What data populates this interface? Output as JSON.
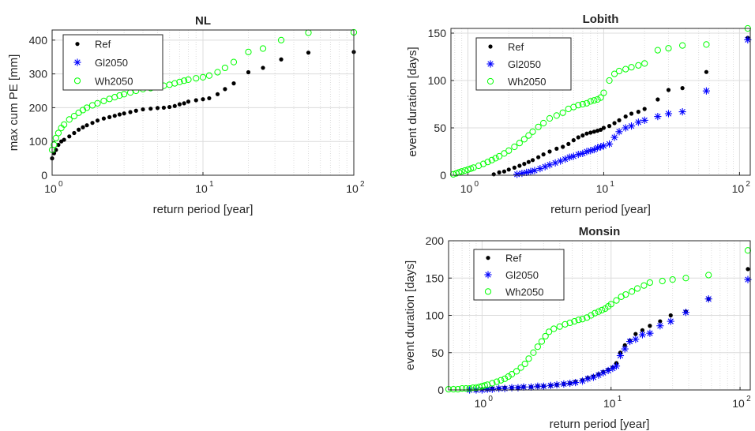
{
  "colors": {
    "Ref": "#000000",
    "Gl2050": "#0000ff",
    "Wh2050": "#00ff00",
    "grid": "#dcdcdc",
    "axis": "#262626"
  },
  "chart_data": [
    {
      "type": "scatter",
      "title": "NL",
      "xlabel": "return period [year]",
      "ylabel": "max cum PE [mm]",
      "xscale": "log",
      "xlim": [
        1,
        100
      ],
      "ylim": [
        0,
        430
      ],
      "xticks": [
        {
          "base": "10",
          "exp": "0"
        },
        {
          "base": "10",
          "exp": "1"
        },
        {
          "base": "10",
          "exp": "2"
        }
      ],
      "yticks": [
        "0",
        "100",
        "200",
        "300",
        "400"
      ],
      "legend": {
        "placement": "top-left",
        "entries": [
          "Ref",
          "Wh2050"
        ]
      },
      "grid": true,
      "series": [
        {
          "name": "Ref",
          "marker": "dot",
          "x": [
            1.0,
            1.03,
            1.06,
            1.1,
            1.15,
            1.2,
            1.3,
            1.4,
            1.5,
            1.6,
            1.7,
            1.85,
            2.0,
            2.2,
            2.4,
            2.6,
            2.8,
            3.0,
            3.3,
            3.6,
            4.0,
            4.5,
            5.0,
            5.5,
            6.0,
            6.5,
            7.0,
            7.5,
            8.0,
            9.0,
            10.0,
            11.0,
            12.5,
            14.0,
            16.0,
            20.0,
            25.0,
            33.0,
            50.0,
            100.0
          ],
          "y": [
            50,
            65,
            75,
            90,
            100,
            105,
            115,
            125,
            135,
            142,
            148,
            155,
            162,
            168,
            172,
            176,
            180,
            183,
            187,
            191,
            195,
            197,
            199,
            200,
            202,
            205,
            210,
            213,
            218,
            222,
            225,
            228,
            240,
            255,
            272,
            305,
            318,
            343,
            363,
            365
          ]
        },
        {
          "name": "Wh2050",
          "marker": "circle",
          "x": [
            1.0,
            1.03,
            1.06,
            1.1,
            1.15,
            1.2,
            1.3,
            1.4,
            1.5,
            1.6,
            1.7,
            1.85,
            2.0,
            2.2,
            2.4,
            2.6,
            2.8,
            3.0,
            3.3,
            3.6,
            4.0,
            4.5,
            5.0,
            5.5,
            6.0,
            6.5,
            7.0,
            7.5,
            8.0,
            9.0,
            10.0,
            11.0,
            12.5,
            14.0,
            16.0,
            20.0,
            25.0,
            33.0,
            50.0,
            100.0
          ],
          "y": [
            75,
            90,
            110,
            125,
            140,
            150,
            165,
            175,
            185,
            193,
            200,
            207,
            213,
            220,
            226,
            231,
            236,
            240,
            245,
            250,
            255,
            258,
            262,
            265,
            268,
            272,
            276,
            280,
            283,
            287,
            290,
            295,
            305,
            318,
            335,
            365,
            375,
            400,
            422,
            423
          ]
        }
      ]
    },
    {
      "type": "scatter",
      "title": "Lobith",
      "xlabel": "return period [year]",
      "ylabel": "event duration [days]",
      "xscale": "log",
      "xlim": [
        0.75,
        120
      ],
      "ylim": [
        0,
        155
      ],
      "xticks": [
        {
          "base": "10",
          "exp": "0"
        },
        {
          "base": "10",
          "exp": "1"
        },
        {
          "base": "10",
          "exp": "2"
        }
      ],
      "yticks": [
        "0",
        "50",
        "100",
        "150"
      ],
      "legend": {
        "placement": "top-left",
        "entries": [
          "Ref",
          "Gl2050",
          "Wh2050"
        ]
      },
      "grid": true,
      "series": [
        {
          "name": "Ref",
          "marker": "dot",
          "x": [
            1.55,
            1.7,
            1.85,
            2.0,
            2.2,
            2.4,
            2.6,
            2.8,
            3.0,
            3.3,
            3.6,
            4.0,
            4.5,
            5.0,
            5.5,
            6.0,
            6.5,
            7.0,
            7.5,
            8.0,
            8.5,
            9.0,
            9.5,
            10.0,
            11.0,
            12.0,
            13.0,
            14.5,
            16.0,
            18.0,
            20.0,
            25.0,
            30.0,
            38.0,
            57.0,
            115.0
          ],
          "y": [
            1,
            3,
            4,
            6,
            8,
            10,
            12,
            14,
            16,
            19,
            22,
            25,
            28,
            30,
            33,
            37,
            40,
            42,
            44,
            45,
            46,
            47,
            48,
            50,
            52,
            55,
            58,
            62,
            65,
            67,
            70,
            80,
            90,
            92,
            109,
            145
          ]
        },
        {
          "name": "Gl2050",
          "marker": "star",
          "x": [
            2.3,
            2.5,
            2.7,
            2.9,
            3.1,
            3.4,
            3.7,
            4.0,
            4.4,
            4.8,
            5.2,
            5.6,
            6.0,
            6.5,
            7.0,
            7.5,
            8.0,
            8.5,
            9.0,
            9.5,
            10.0,
            11.0,
            12.0,
            13.0,
            14.5,
            16.0,
            18.0,
            20.0,
            25.0,
            30.0,
            38.0,
            57.0,
            115.0
          ],
          "y": [
            1,
            2,
            3,
            4,
            5,
            7,
            9,
            11,
            13,
            15,
            17,
            19,
            20,
            22,
            23,
            25,
            26,
            27,
            29,
            30,
            31,
            33,
            40,
            46,
            50,
            52,
            56,
            58,
            62,
            65,
            67,
            89,
            143
          ]
        },
        {
          "name": "Wh2050",
          "marker": "circle",
          "x": [
            0.78,
            0.82,
            0.86,
            0.9,
            0.95,
            1.0,
            1.05,
            1.1,
            1.2,
            1.3,
            1.4,
            1.5,
            1.6,
            1.7,
            1.85,
            2.0,
            2.2,
            2.4,
            2.6,
            2.8,
            3.0,
            3.3,
            3.6,
            4.0,
            4.5,
            5.0,
            5.5,
            6.0,
            6.5,
            7.0,
            7.5,
            8.0,
            8.5,
            9.0,
            9.5,
            10.0,
            11.0,
            12.0,
            13.0,
            14.5,
            16.0,
            18.0,
            20.0,
            25.0,
            30.0,
            38.0,
            57.0,
            115.0
          ],
          "y": [
            1,
            2,
            3,
            4,
            5,
            6,
            7,
            8,
            10,
            12,
            14,
            16,
            18,
            20,
            23,
            26,
            30,
            34,
            38,
            42,
            46,
            51,
            55,
            60,
            63,
            66,
            70,
            72,
            74,
            75,
            76,
            78,
            79,
            80,
            82,
            87,
            100,
            107,
            110,
            112,
            114,
            116,
            118,
            132,
            134,
            137,
            138,
            155
          ]
        }
      ]
    },
    {
      "type": "scatter",
      "title": "Monsin",
      "xlabel": "return period [year]",
      "ylabel": "event duration [days]",
      "xscale": "log",
      "xlim": [
        0.55,
        120
      ],
      "ylim": [
        0,
        200
      ],
      "xticks": [
        {
          "base": "10",
          "exp": "0"
        },
        {
          "base": "10",
          "exp": "1"
        },
        {
          "base": "10",
          "exp": "2"
        }
      ],
      "yticks": [
        "0",
        "50",
        "100",
        "150",
        "200"
      ],
      "legend": {
        "placement": "top-left",
        "entries": [
          "Ref",
          "Gl2050",
          "Wh2050"
        ]
      },
      "grid": true,
      "series": [
        {
          "name": "Ref",
          "marker": "dot",
          "x": [
            0.8,
            0.9,
            1.0,
            1.1,
            1.2,
            1.35,
            1.5,
            1.7,
            1.9,
            2.1,
            2.4,
            2.7,
            3.0,
            3.4,
            3.8,
            4.3,
            4.8,
            5.3,
            6.0,
            6.6,
            7.3,
            8.0,
            8.7,
            9.5,
            10.3,
            11.0,
            11.8,
            12.8,
            14.0,
            15.5,
            17.5,
            20.0,
            24.0,
            29.0,
            38.0,
            57.0,
            115.0
          ],
          "y": [
            0,
            0,
            1,
            1,
            2,
            2,
            3,
            3,
            3,
            4,
            4,
            5,
            5,
            6,
            7,
            8,
            9,
            11,
            13,
            16,
            18,
            21,
            24,
            27,
            30,
            36,
            50,
            60,
            66,
            75,
            80,
            86,
            92,
            100,
            105,
            122,
            162
          ]
        },
        {
          "name": "Gl2050",
          "marker": "star",
          "x": [
            0.8,
            0.9,
            1.0,
            1.1,
            1.2,
            1.35,
            1.5,
            1.7,
            1.9,
            2.1,
            2.4,
            2.7,
            3.0,
            3.4,
            3.8,
            4.3,
            4.8,
            5.3,
            6.0,
            6.6,
            7.3,
            8.0,
            8.7,
            9.5,
            10.3,
            11.0,
            11.8,
            12.8,
            14.0,
            15.5,
            17.5,
            20.0,
            24.0,
            29.0,
            38.0,
            57.0,
            115.0
          ],
          "y": [
            0,
            0,
            0,
            1,
            1,
            2,
            2,
            3,
            3,
            4,
            4,
            5,
            5,
            6,
            7,
            8,
            9,
            10,
            12,
            15,
            17,
            20,
            23,
            26,
            29,
            32,
            46,
            55,
            65,
            68,
            74,
            76,
            86,
            92,
            104,
            122,
            148
          ]
        },
        {
          "name": "Wh2050",
          "marker": "circle",
          "x": [
            0.55,
            0.6,
            0.65,
            0.7,
            0.75,
            0.8,
            0.85,
            0.9,
            0.95,
            1.0,
            1.05,
            1.1,
            1.2,
            1.3,
            1.4,
            1.5,
            1.6,
            1.7,
            1.85,
            2.0,
            2.15,
            2.3,
            2.5,
            2.7,
            2.9,
            3.1,
            3.3,
            3.6,
            4.0,
            4.4,
            4.8,
            5.2,
            5.6,
            6.0,
            6.5,
            7.0,
            7.5,
            8.0,
            8.5,
            9.0,
            9.5,
            10.0,
            11.0,
            12.0,
            13.0,
            14.5,
            16.0,
            18.0,
            20.0,
            25.0,
            30.0,
            38.0,
            57.0,
            115.0
          ],
          "y": [
            1,
            1,
            1,
            2,
            2,
            2,
            3,
            3,
            4,
            5,
            6,
            7,
            9,
            11,
            13,
            15,
            18,
            21,
            25,
            30,
            35,
            42,
            50,
            58,
            65,
            72,
            78,
            82,
            85,
            88,
            90,
            92,
            94,
            95,
            97,
            100,
            103,
            105,
            107,
            109,
            112,
            115,
            120,
            125,
            128,
            132,
            136,
            140,
            144,
            146,
            148,
            150,
            154,
            187
          ]
        }
      ]
    }
  ]
}
